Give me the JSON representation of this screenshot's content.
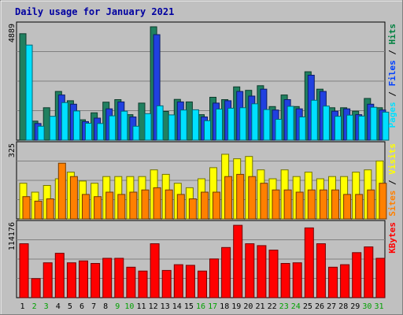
{
  "chart_data": {
    "type": "bar",
    "title": "Daily usage for January 2021",
    "categories": [
      "1",
      "2",
      "3",
      "4",
      "5",
      "6",
      "7",
      "8",
      "9",
      "10",
      "11",
      "12",
      "13",
      "14",
      "15",
      "16",
      "17",
      "18",
      "19",
      "20",
      "21",
      "22",
      "23",
      "24",
      "25",
      "26",
      "27",
      "28",
      "29",
      "30",
      "31"
    ],
    "weekend_categories": [
      "2",
      "3",
      "9",
      "10",
      "16",
      "17",
      "23",
      "24",
      "30",
      "31"
    ],
    "panels": [
      {
        "id": "top",
        "ymax_label": "4889",
        "ylim": [
          0,
          4889
        ],
        "legend": [
          {
            "text": "Pages",
            "color": "#00e0ff"
          },
          {
            "text": "Files",
            "color": "#0040ff"
          },
          {
            "text": "Hits",
            "color": "#008040"
          }
        ],
        "series": [
          {
            "name": "Hits",
            "color": "#208060",
            "values": [
              4590,
              820,
              1400,
              2100,
              1700,
              880,
              1180,
              1640,
              1750,
              1100,
              1600,
              4889,
              1240,
              1760,
              1650,
              1100,
              1850,
              1750,
              2300,
              2150,
              2350,
              1450,
              1950,
              1450,
              2950,
              2200,
              1400,
              1400,
              1250,
              1800,
              1400
            ]
          },
          {
            "name": "Files",
            "color": "#2040e0",
            "values": [
              0,
              720,
              0,
              1950,
              1550,
              800,
              950,
              1350,
              1650,
              1000,
              0,
              4550,
              0,
              1650,
              0,
              1000,
              1600,
              1700,
              2100,
              1900,
              2200,
              1300,
              1750,
              1350,
              2800,
              2100,
              1250,
              1350,
              1100,
              1550,
              1300
            ]
          },
          {
            "name": "Pages",
            "color": "#00e0ff",
            "values": [
              4100,
              600,
              1030,
              1620,
              1260,
              730,
              720,
              1050,
              1250,
              600,
              1140,
              1480,
              1090,
              1300,
              1310,
              840,
              1340,
              1380,
              1400,
              1570,
              1320,
              900,
              1460,
              1000,
              1720,
              1470,
              1030,
              1080,
              1040,
              1420,
              1210
            ]
          }
        ]
      },
      {
        "id": "middle",
        "ymax_label": "325",
        "ylim": [
          0,
          325
        ],
        "legend": [
          {
            "text": "Sites",
            "color": "#ff8000"
          },
          {
            "text": "Visits",
            "color": "#ffff00"
          }
        ],
        "series": [
          {
            "name": "Visits",
            "color": "#ffff00",
            "values": [
              160,
              120,
              150,
              180,
              210,
              170,
              160,
              190,
              190,
              190,
              190,
              220,
              200,
              160,
              140,
              180,
              230,
              290,
              270,
              280,
              220,
              180,
              220,
              190,
              210,
              180,
              190,
              190,
              210,
              220,
              260
            ]
          },
          {
            "name": "Sites",
            "color": "#ff8000",
            "values": [
              100,
              80,
              90,
              250,
              190,
              110,
              100,
              120,
              110,
              120,
              130,
              140,
              130,
              110,
              90,
              120,
              120,
              190,
              200,
              190,
              160,
              130,
              130,
              120,
              130,
              130,
              130,
              110,
              110,
              130,
              160
            ]
          }
        ]
      },
      {
        "id": "bottom",
        "ymax_label": "114176",
        "ylim": [
          0,
          114176
        ],
        "legend": [
          {
            "text": "KBytes",
            "color": "#ff0000"
          }
        ],
        "series": [
          {
            "name": "KBytes",
            "color": "#ff0000",
            "values": [
              85000,
              30000,
              55000,
              70000,
              55000,
              58000,
              54000,
              62000,
              62000,
              48000,
              42000,
              85000,
              43000,
              52000,
              51000,
              42000,
              61000,
              79000,
              114000,
              85000,
              82000,
              75000,
              54000,
              55000,
              110000,
              85000,
              48000,
              52000,
              71000,
              80000,
              62000
            ]
          }
        ]
      }
    ],
    "grid": true,
    "legend_placement": "right-vertical"
  }
}
